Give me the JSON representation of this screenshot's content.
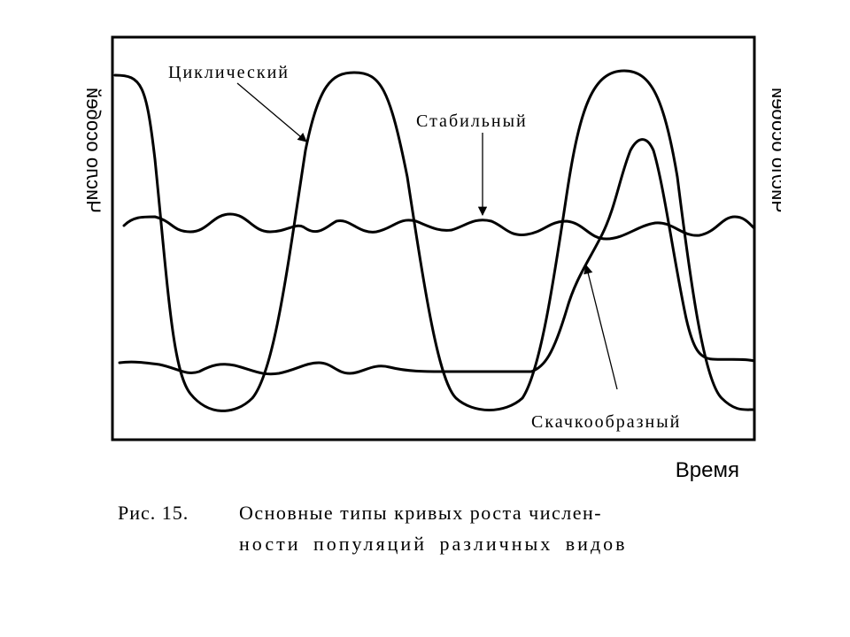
{
  "figure": {
    "y_axis_label": "Число особей",
    "x_axis_label": "Время",
    "curves": [
      {
        "label": "Циклический"
      },
      {
        "label": "Стабильный"
      },
      {
        "label": "Скачкообразный"
      }
    ],
    "caption": {
      "number": "Рис. 15.",
      "lines": [
        "Основные типы кривых роста числен-",
        "ности популяций различных видов"
      ]
    }
  }
}
